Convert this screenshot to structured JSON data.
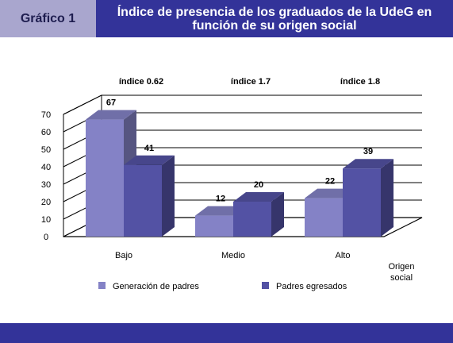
{
  "header": {
    "label": "Gráfico 1",
    "title": "Índice de presencia de los graduados de la UdeG en función de su origen social"
  },
  "chart_data": {
    "type": "bar",
    "categories": [
      "Bajo",
      "Medio",
      "Alto"
    ],
    "series": [
      {
        "name": "Generación de padres",
        "values": [
          67,
          12,
          22
        ],
        "color": "#8482c6"
      },
      {
        "name": "Padres egresados",
        "values": [
          41,
          20,
          39
        ],
        "color": "#5352a4"
      }
    ],
    "indices": [
      "índice 0.62",
      "índice 1.7",
      "índice 1.8"
    ],
    "y_ticks": [
      0,
      10,
      20,
      30,
      40,
      50,
      60,
      70
    ],
    "ylim": [
      0,
      70
    ],
    "xlabel": "Origen social",
    "legend_position": "bottom",
    "grid": true
  }
}
